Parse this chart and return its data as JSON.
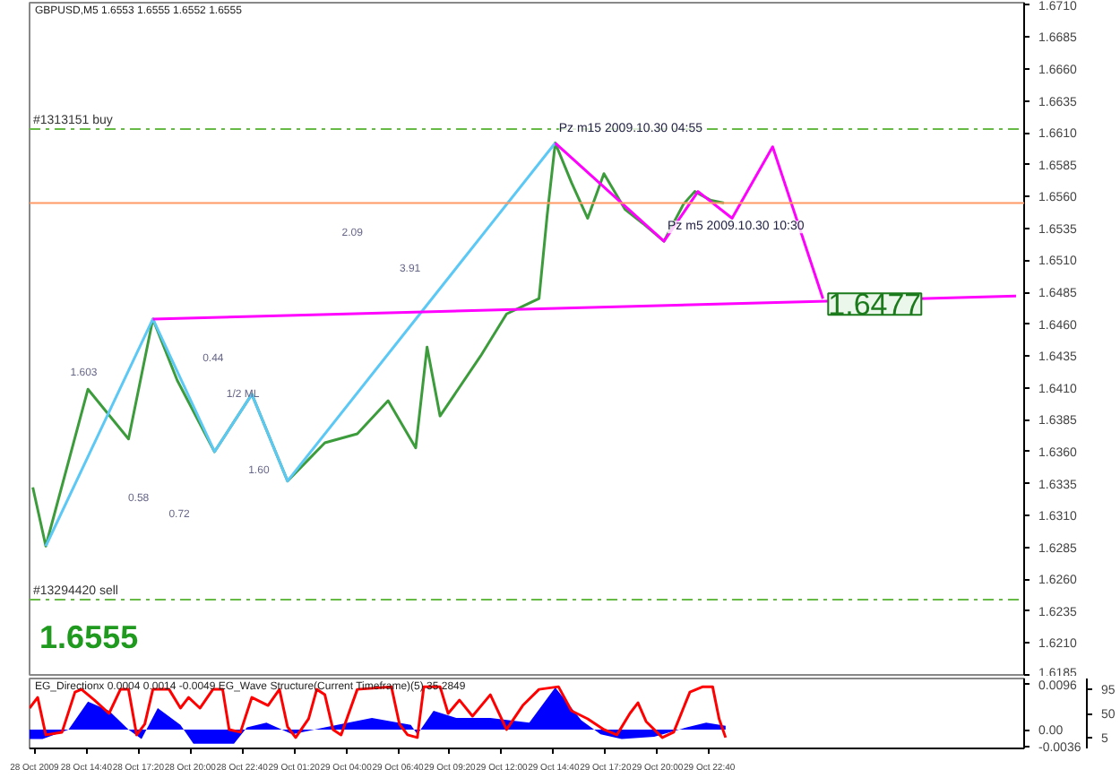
{
  "chart_data": [
    {
      "type": "line",
      "title": "GBPUSD,M5  1.6553 1.6555 1.6552 1.6555",
      "xlim": [
        "2009-10-28T11:45",
        "2009-10-30T14:50"
      ],
      "ylim": [
        1.6185,
        1.6712
      ],
      "tick_labels": "y",
      "yticks": [
        1.6185,
        {
          "value": 1.621,
          "label": "1.6210"
        },
        1.6235,
        {
          "value": 1.626,
          "label": "1.6260"
        },
        1.6285,
        {
          "value": 1.631,
          "label": "1.6310"
        },
        1.6335,
        {
          "value": 1.636,
          "label": "1.6360"
        },
        1.6385,
        {
          "value": 1.641,
          "label": "1.6410"
        },
        1.6435,
        {
          "value": 1.646,
          "label": "1.6460"
        },
        1.6485,
        {
          "value": 1.651,
          "label": "1.6510"
        },
        1.6535,
        {
          "value": 1.656,
          "label": "1.6560"
        },
        1.6585,
        {
          "value": 1.661,
          "label": "1.6610"
        },
        1.6635,
        {
          "value": 1.666,
          "label": "1.6660"
        },
        1.6685,
        {
          "value": 1.671,
          "label": "1.6710"
        }
      ],
      "series": [
        {
          "color": "#3c9c3c",
          "x": [
            "2009-10-28T11:55",
            "2009-10-28T12:35",
            "2009-10-28T14:45",
            "2009-10-28T16:50",
            "2009-10-28T18:05",
            "2009-10-28T19:20",
            "2009-10-28T21:15",
            "2009-10-28T23:10",
            "2009-10-29T01:00",
            "2009-10-29T02:55",
            "2009-10-29T04:35",
            "2009-10-29T06:10",
            "2009-10-29T07:35",
            "2009-10-29T08:10",
            "2009-10-29T08:50",
            "2009-10-29T10:55",
            "2009-10-29T12:15",
            "2009-10-29T13:30",
            "2009-10-29T13:55",
            "2009-10-29T14:20",
            "2009-10-29T14:45",
            "2009-10-29T15:35",
            "2009-10-29T16:25",
            "2009-10-29T17:15",
            "2009-10-29T18:20",
            "2009-10-29T19:15",
            "2009-10-29T20:20",
            "2009-10-29T21:20",
            "2009-10-29T21:55",
            "2009-10-29T22:45",
            "2009-10-29T23:25"
          ],
          "values": [
            1.6332,
            1.6286,
            1.6409,
            1.637,
            1.6464,
            1.6416,
            1.636,
            1.6405,
            1.6337,
            1.6367,
            1.6374,
            1.64,
            1.6363,
            1.6442,
            1.6388,
            1.6435,
            1.6468,
            1.6477,
            1.648,
            1.6545,
            1.6602,
            1.6571,
            1.6543,
            1.6578,
            1.655,
            1.6539,
            1.6525,
            1.6554,
            1.6564,
            1.6557,
            1.6555
          ]
        },
        {
          "color": "#5bc8f5",
          "x": [
            "2009-10-28T12:35",
            "2009-10-28T18:05",
            "2009-10-28T21:15",
            "2009-10-28T23:10",
            "2009-10-29T01:00",
            "2009-10-29T14:45"
          ],
          "values": [
            1.6286,
            1.6464,
            1.636,
            1.6405,
            1.6337,
            1.6602
          ]
        },
        {
          "color": "#ff00ff",
          "x": [
            "2009-10-28T18:05",
            "2009-10-30T14:25"
          ],
          "values": [
            1.6464,
            1.6482
          ]
        },
        {
          "color": "#ff00ff",
          "x": [
            "2009-10-29T14:45",
            "2009-10-29T20:20",
            "2009-10-29T22:05",
            "2009-10-29T23:50",
            "2009-10-30T01:55",
            "2009-10-30T04:30"
          ],
          "values": [
            1.6602,
            1.6525,
            1.6564,
            1.6543,
            1.6599,
            1.648
          ]
        }
      ],
      "ref_lines": [
        {
          "axis": "y",
          "value": 1.6613,
          "label": "#1313151 buy",
          "color": "#66bb44",
          "line_style": "dashed"
        },
        {
          "axis": "y",
          "value": 1.6244,
          "label": "#13294420 sell",
          "color": "#66bb44",
          "line_style": "dashed"
        },
        {
          "axis": "y",
          "value": 1.6555,
          "color": "#ff9966",
          "line_style": "solid"
        }
      ],
      "annotations": [
        {
          "text": "1.6477",
          "x": "2009-10-30T04:35",
          "y": 1.648
        },
        {
          "text": "Pz m15  2009.10.30 04:55",
          "x": "2009-10-29T14:45",
          "y": 1.6604
        },
        {
          "text": "Pz m5  2009.10.30 10:30",
          "x": "2009-10-29T20:20",
          "y": 1.6527
        },
        "1.6555",
        "2.09",
        "3.91",
        "1.603",
        "0.44",
        "0.58",
        "0.72",
        "1.60",
        "1/2 ML"
      ]
    },
    {
      "type": "line",
      "title": "EG_Directionx 0.0004 0.0014 -0.0049  EG_Wave Structure(Current Timeframe)(5) 35.2849",
      "xlim": [
        "2009-10-28T11:45",
        "2009-10-30T14:50"
      ],
      "ylim": [
        -0.004,
        0.0109
      ],
      "y2lim": [
        -15.3,
        115.3
      ],
      "xticks": [
        {
          "value": "2009-10-28T12:00",
          "label": "28 Oct 2009"
        },
        {
          "value": "2009-10-28T14:40",
          "label": "28 Oct 14:40"
        },
        {
          "value": "2009-10-28T17:20",
          "label": "28 Oct 17:20"
        },
        {
          "value": "2009-10-28T20:00",
          "label": "28 Oct 20:00"
        },
        {
          "value": "2009-10-28T22:40",
          "label": "28 Oct 22:40"
        },
        {
          "value": "2009-10-29T01:20",
          "label": "29 Oct 01:20"
        },
        {
          "value": "2009-10-29T04:00",
          "label": "29 Oct 04:00"
        },
        {
          "value": "2009-10-29T06:40",
          "label": "29 Oct 06:40"
        },
        {
          "value": "2009-10-29T09:20",
          "label": "29 Oct 09:20"
        },
        {
          "value": "2009-10-29T12:00",
          "label": "29 Oct 12:00"
        },
        {
          "value": "2009-10-29T14:40",
          "label": "29 Oct 14:40"
        },
        {
          "value": "2009-10-29T17:20",
          "label": "29 Oct 17:20"
        },
        {
          "value": "2009-10-29T20:00",
          "label": "29 Oct 20:00"
        },
        {
          "value": "2009-10-29T22:40",
          "label": "29 Oct 22:40"
        }
      ],
      "yticks": [
        {
          "value": 0.0096,
          "label": "0.0096"
        },
        {
          "value": 0,
          "label": "0.00"
        },
        {
          "value": -0.0036,
          "label": "-0.0036"
        }
      ],
      "y2ticks": [
        95,
        50,
        5
      ],
      "series": [
        {
          "type": "area",
          "color": "#0000ff",
          "x": [
            "2009-10-28T11:45",
            "2009-10-28T12:25",
            "2009-10-28T13:45",
            "2009-10-28T14:45",
            "2009-10-28T15:50",
            "2009-10-28T16:50",
            "2009-10-28T17:30",
            "2009-10-28T18:20",
            "2009-10-28T19:30",
            "2009-10-28T20:10",
            "2009-10-28T22:15",
            "2009-10-28T22:55",
            "2009-10-28T23:55",
            "2009-10-29T01:15",
            "2009-10-29T02:55",
            "2009-10-29T05:20",
            "2009-10-29T07:20",
            "2009-10-29T07:40",
            "2009-10-29T08:30",
            "2009-10-29T09:40",
            "2009-10-29T11:25",
            "2009-10-29T13:25",
            "2009-10-29T14:45",
            "2009-10-29T16:05",
            "2009-10-29T17:05",
            "2009-10-29T18:10",
            "2009-10-29T19:50",
            "2009-10-29T21:30",
            "2009-10-29T22:30",
            "2009-10-29T23:30"
          ],
          "values": [
            -0.002,
            -0.002,
            0,
            0.006,
            0.004,
            0,
            -0.002,
            0.0046,
            0.001,
            -0.003,
            -0.003,
            0.0005,
            0.0015,
            -0.001,
            0.0005,
            0.0025,
            0.001,
            -0.001,
            0.004,
            0.0025,
            0.0025,
            0.0015,
            0.009,
            0.002,
            -0.001,
            -0.002,
            -0.0015,
            0.0005,
            0.0015,
            0.0008
          ]
        },
        {
          "type": "line",
          "axis": "y2",
          "color": "#ff0000",
          "x": [
            "2009-10-28T11:45",
            "2009-10-28T12:10",
            "2009-10-28T12:35",
            "2009-10-28T13:25",
            "2009-10-28T14:05",
            "2009-10-28T14:25",
            "2009-10-28T15:05",
            "2009-10-28T15:50",
            "2009-10-28T16:25",
            "2009-10-28T16:50",
            "2009-10-28T17:15",
            "2009-10-28T17:40",
            "2009-10-28T18:05",
            "2009-10-28T18:55",
            "2009-10-28T19:30",
            "2009-10-28T19:55",
            "2009-10-28T20:30",
            "2009-10-28T21:10",
            "2009-10-28T21:40",
            "2009-10-28T22:00",
            "2009-10-28T22:35",
            "2009-10-28T23:10",
            "2009-10-29T00:00",
            "2009-10-29T00:35",
            "2009-10-29T01:00",
            "2009-10-29T01:25",
            "2009-10-29T02:05",
            "2009-10-29T02:30",
            "2009-10-29T02:55",
            "2009-10-29T03:20",
            "2009-10-29T03:45",
            "2009-10-29T04:35",
            "2009-10-29T06:20",
            "2009-10-29T06:45",
            "2009-10-29T07:10",
            "2009-10-29T07:40",
            "2009-10-29T08:00",
            "2009-10-29T08:50",
            "2009-10-29T09:15",
            "2009-10-29T09:50",
            "2009-10-29T10:30",
            "2009-10-29T11:25",
            "2009-10-29T12:15",
            "2009-10-29T13:05",
            "2009-10-29T13:55",
            "2009-10-29T14:55",
            "2009-10-29T15:35",
            "2009-10-29T16:25",
            "2009-10-29T17:15",
            "2009-10-29T17:55",
            "2009-10-29T18:35",
            "2009-10-29T19:00",
            "2009-10-29T19:25",
            "2009-10-29T20:15",
            "2009-10-29T20:50",
            "2009-10-29T21:40",
            "2009-10-29T22:20",
            "2009-10-29T22:50",
            "2009-10-29T23:10",
            "2009-10-29T23:30"
          ],
          "values": [
            60,
            80,
            10,
            15,
            90,
            95,
            75,
            50,
            95,
            95,
            10,
            30,
            95,
            95,
            60,
            80,
            60,
            95,
            95,
            20,
            15,
            80,
            65,
            95,
            25,
            5,
            40,
            95,
            85,
            20,
            10,
            95,
            100,
            30,
            10,
            5,
            100,
            100,
            50,
            75,
            45,
            85,
            20,
            65,
            95,
            100,
            55,
            40,
            20,
            10,
            50,
            70,
            35,
            5,
            15,
            90,
            100,
            100,
            40,
            5
          ]
        }
      ]
    }
  ]
}
